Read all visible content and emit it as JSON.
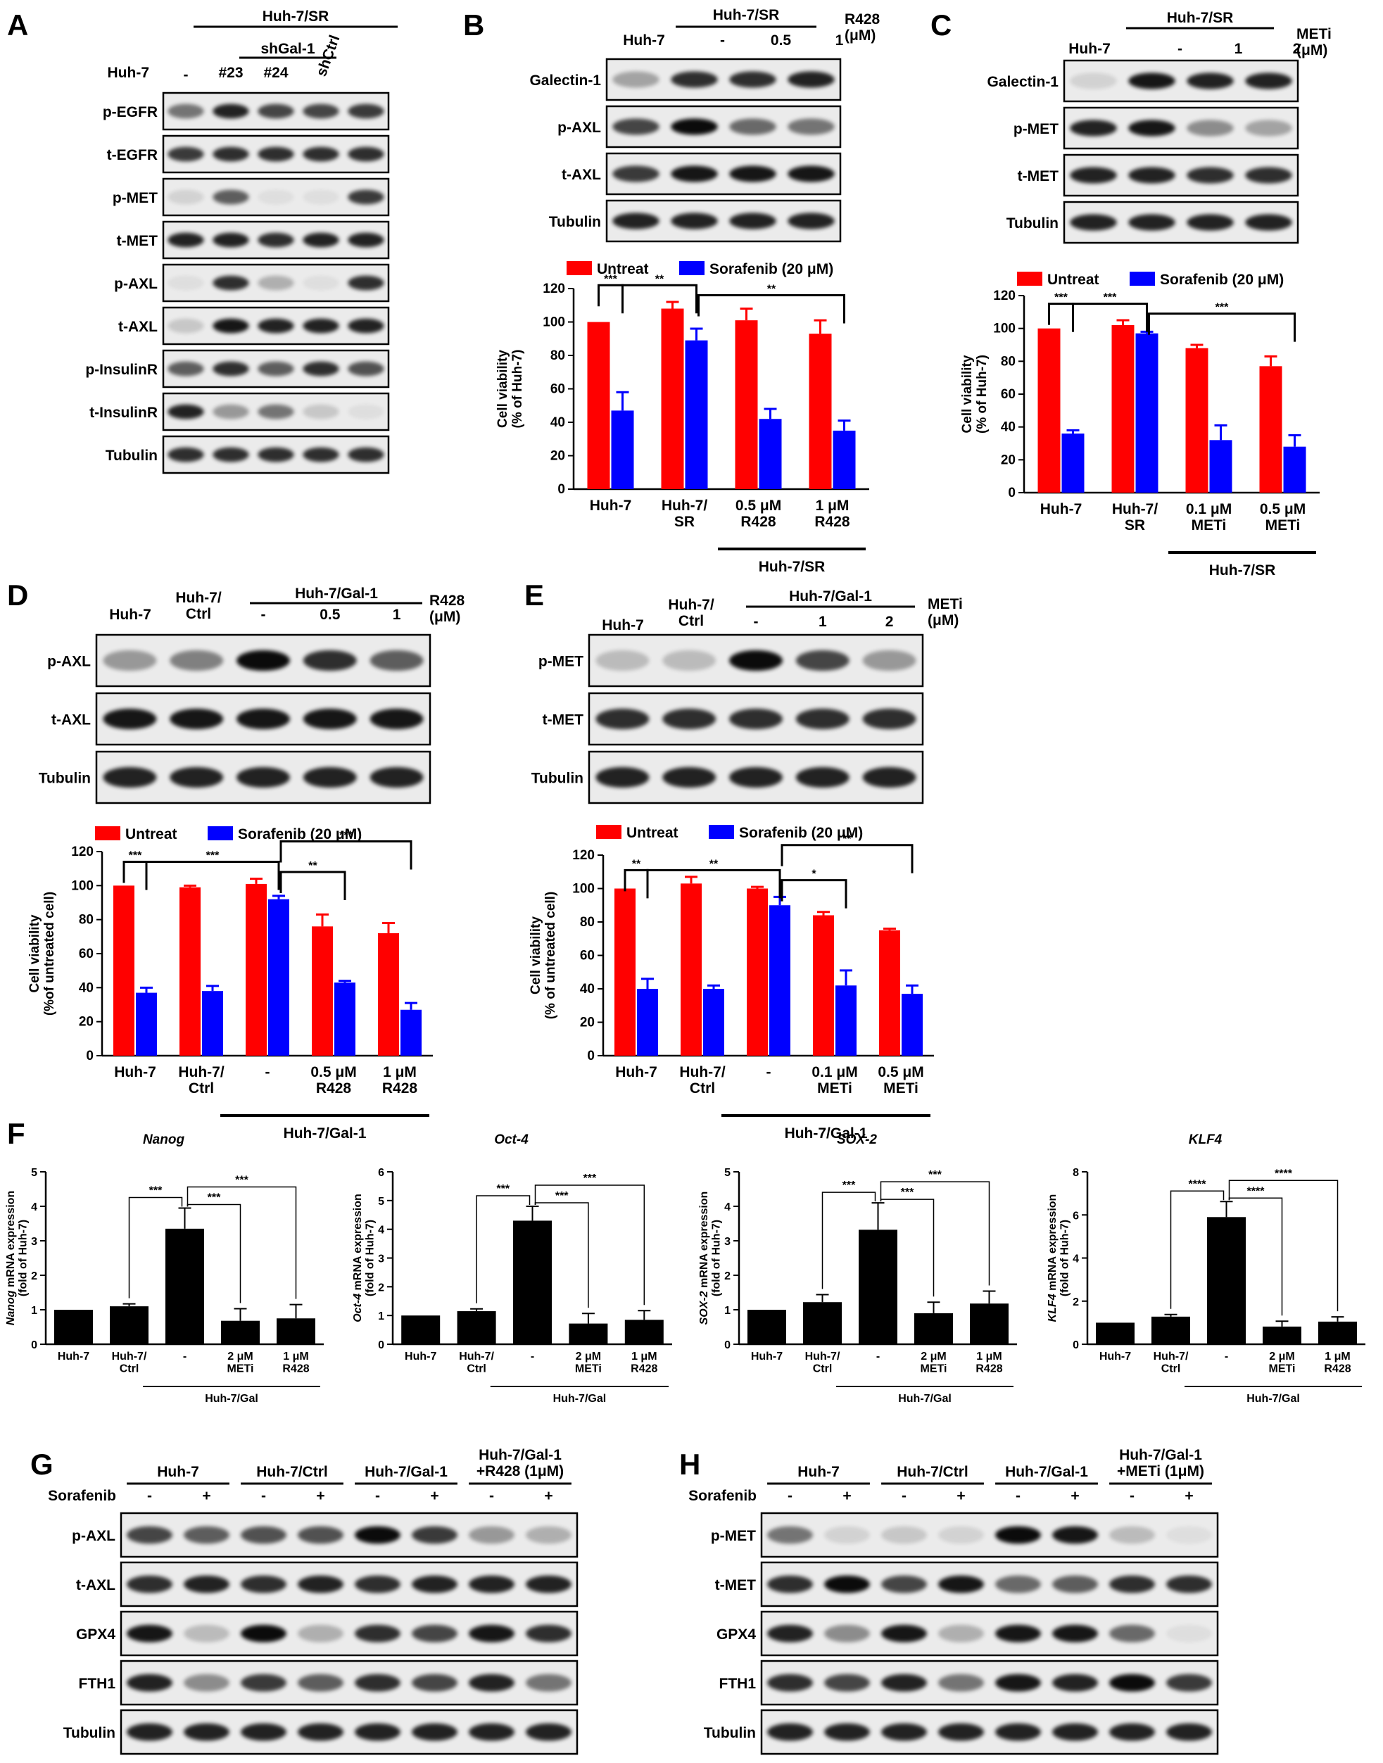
{
  "figure": {
    "panel_letters": [
      "A",
      "B",
      "C",
      "D",
      "E",
      "F",
      "G",
      "H"
    ],
    "units": {
      "r428": "R428\n(μM)",
      "meti": "METi\n(μM)"
    },
    "sig": {
      "s1": "*",
      "s2": "**",
      "s3": "***",
      "s4": "****"
    }
  },
  "blots": {
    "A": {
      "group_label": "Huh-7/SR",
      "sub_group_label": "shGal-1",
      "columns": [
        "Huh-7",
        "-",
        "#23",
        "#24",
        "shCtrl"
      ],
      "rows": [
        "p-EGFR",
        "t-EGFR",
        "p-MET",
        "t-MET",
        "p-AXL",
        "t-AXL",
        "p-InsulinR",
        "t-InsulinR",
        "Tubulin"
      ],
      "intensity": [
        [
          0.5,
          0.85,
          0.7,
          0.7,
          0.75
        ],
        [
          0.75,
          0.8,
          0.8,
          0.8,
          0.8
        ],
        [
          0.1,
          0.6,
          0.05,
          0.05,
          0.75
        ],
        [
          0.85,
          0.85,
          0.8,
          0.85,
          0.85
        ],
        [
          0.05,
          0.8,
          0.25,
          0.05,
          0.8
        ],
        [
          0.15,
          0.9,
          0.85,
          0.85,
          0.85
        ],
        [
          0.6,
          0.8,
          0.6,
          0.8,
          0.65
        ],
        [
          0.85,
          0.35,
          0.5,
          0.15,
          0.05
        ],
        [
          0.8,
          0.8,
          0.8,
          0.8,
          0.8
        ]
      ]
    },
    "B": {
      "group_label": "Huh-7/SR",
      "columns": [
        "Huh-7",
        "-",
        "0.5",
        "1"
      ],
      "rows": [
        "Galectin-1",
        "p-AXL",
        "t-AXL",
        "Tubulin"
      ],
      "intensity": [
        [
          0.3,
          0.8,
          0.8,
          0.85
        ],
        [
          0.7,
          0.95,
          0.55,
          0.5
        ],
        [
          0.75,
          0.9,
          0.9,
          0.9
        ],
        [
          0.85,
          0.85,
          0.85,
          0.85
        ]
      ]
    },
    "C": {
      "group_label": "Huh-7/SR",
      "columns": [
        "Huh-7",
        "-",
        "1",
        "2"
      ],
      "rows": [
        "Galectin-1",
        "p-MET",
        "t-MET",
        "Tubulin"
      ],
      "intensity": [
        [
          0.1,
          0.9,
          0.85,
          0.85
        ],
        [
          0.85,
          0.9,
          0.4,
          0.3
        ],
        [
          0.85,
          0.85,
          0.8,
          0.8
        ],
        [
          0.85,
          0.85,
          0.85,
          0.85
        ]
      ]
    },
    "D": {
      "group_label": "Huh-7/Gal-1",
      "columns": [
        "Huh-7",
        "Huh-7/\nCtrl",
        "-",
        "0.5",
        "1"
      ],
      "rows": [
        "p-AXL",
        "t-AXL",
        "Tubulin"
      ],
      "intensity": [
        [
          0.35,
          0.45,
          0.95,
          0.8,
          0.6
        ],
        [
          0.9,
          0.9,
          0.9,
          0.9,
          0.9
        ],
        [
          0.85,
          0.85,
          0.85,
          0.85,
          0.85
        ]
      ]
    },
    "E": {
      "group_label": "Huh-7/Gal-1",
      "columns": [
        "Huh-7",
        "Huh-7/\nCtrl",
        "-",
        "1",
        "2"
      ],
      "rows": [
        "p-MET",
        "t-MET",
        "Tubulin"
      ],
      "intensity": [
        [
          0.2,
          0.2,
          0.95,
          0.7,
          0.35
        ],
        [
          0.8,
          0.8,
          0.8,
          0.8,
          0.8
        ],
        [
          0.85,
          0.85,
          0.85,
          0.85,
          0.85
        ]
      ]
    },
    "G": {
      "groups": [
        "Huh-7",
        "Huh-7/Ctrl",
        "Huh-7/Gal-1",
        "Huh-7/Gal-1\n+R428 (1μM)"
      ],
      "treatment_label": "Sorafenib",
      "signs": [
        "-",
        "+",
        "-",
        "+",
        "-",
        "+",
        "-",
        "+"
      ],
      "rows": [
        "p-AXL",
        "t-AXL",
        "GPX4",
        "FTH1",
        "Tubulin"
      ],
      "intensity": [
        [
          0.7,
          0.6,
          0.65,
          0.65,
          0.95,
          0.75,
          0.35,
          0.25
        ],
        [
          0.8,
          0.85,
          0.8,
          0.85,
          0.8,
          0.85,
          0.85,
          0.85
        ],
        [
          0.9,
          0.2,
          0.95,
          0.25,
          0.8,
          0.7,
          0.9,
          0.8
        ],
        [
          0.85,
          0.4,
          0.75,
          0.6,
          0.8,
          0.7,
          0.85,
          0.5
        ],
        [
          0.85,
          0.85,
          0.85,
          0.85,
          0.85,
          0.85,
          0.85,
          0.85
        ]
      ]
    },
    "H": {
      "groups": [
        "Huh-7",
        "Huh-7/Ctrl",
        "Huh-7/Gal-1",
        "Huh-7/Gal-1\n+METi (1μM)"
      ],
      "treatment_label": "Sorafenib",
      "signs": [
        "-",
        "+",
        "-",
        "+",
        "-",
        "+",
        "-",
        "+"
      ],
      "rows": [
        "p-MET",
        "t-MET",
        "GPX4",
        "FTH1",
        "Tubulin"
      ],
      "intensity": [
        [
          0.5,
          0.1,
          0.15,
          0.1,
          0.95,
          0.9,
          0.2,
          0.05
        ],
        [
          0.8,
          0.95,
          0.7,
          0.9,
          0.55,
          0.6,
          0.8,
          0.8
        ],
        [
          0.85,
          0.4,
          0.9,
          0.25,
          0.9,
          0.9,
          0.55,
          0.05
        ],
        [
          0.8,
          0.7,
          0.85,
          0.5,
          0.9,
          0.85,
          0.95,
          0.75
        ],
        [
          0.85,
          0.85,
          0.85,
          0.85,
          0.85,
          0.85,
          0.85,
          0.85
        ]
      ]
    }
  },
  "chart_data": [
    {
      "panel": "B",
      "type": "bar",
      "legend": [
        "Untreat",
        "Sorafenib (20 μM)"
      ],
      "colors": [
        "#ff0000",
        "#0000ff"
      ],
      "ylabel": "Cell viability\n(% of Huh-7)",
      "ylim": [
        0,
        120
      ],
      "yticks": [
        0,
        20,
        40,
        60,
        80,
        100,
        120
      ],
      "categories": [
        "Huh-7",
        "Huh-7/\nSR",
        "0.5 μM\nR428",
        "1 μM\nR428"
      ],
      "group_label": "Huh-7/SR",
      "series": [
        {
          "name": "Untreat",
          "values": [
            100,
            108,
            101,
            93
          ],
          "errors": [
            0,
            4,
            7,
            8
          ]
        },
        {
          "name": "Sorafenib (20 μM)",
          "values": [
            47,
            89,
            42,
            35
          ],
          "errors": [
            11,
            7,
            6,
            6
          ]
        }
      ],
      "annotations": [
        "***",
        "**",
        "**",
        "***"
      ]
    },
    {
      "panel": "C",
      "type": "bar",
      "legend": [
        "Untreat",
        "Sorafenib (20 μM)"
      ],
      "colors": [
        "#ff0000",
        "#0000ff"
      ],
      "ylabel": "Cell viability\n(% of Huh-7)",
      "ylim": [
        0,
        120
      ],
      "yticks": [
        0,
        20,
        40,
        60,
        80,
        100,
        120
      ],
      "categories": [
        "Huh-7",
        "Huh-7/\nSR",
        "0.1 μM\nMETi",
        "0.5 μM\nMETi"
      ],
      "group_label": "Huh-7/SR",
      "series": [
        {
          "name": "Untreat",
          "values": [
            100,
            102,
            88,
            77
          ],
          "errors": [
            0,
            3,
            2,
            6
          ]
        },
        {
          "name": "Sorafenib (20 μM)",
          "values": [
            36,
            97,
            32,
            28
          ],
          "errors": [
            2,
            1,
            9,
            7
          ]
        }
      ],
      "annotations": [
        "***",
        "***",
        "***",
        "***"
      ]
    },
    {
      "panel": "D",
      "type": "bar",
      "legend": [
        "Untreat",
        "Sorafenib (20 μM)"
      ],
      "colors": [
        "#ff0000",
        "#0000ff"
      ],
      "ylabel": "Cell viability\n(%of untreated cell)",
      "ylim": [
        0,
        120
      ],
      "yticks": [
        0,
        20,
        40,
        60,
        80,
        100,
        120
      ],
      "categories": [
        "Huh-7",
        "Huh-7/\nCtrl",
        "-",
        "0.5 μM\nR428",
        "1 μM\nR428"
      ],
      "group_label": "Huh-7/Gal-1",
      "series": [
        {
          "name": "Untreat",
          "values": [
            100,
            99,
            101,
            76,
            72
          ],
          "errors": [
            0,
            1,
            3,
            7,
            6
          ]
        },
        {
          "name": "Sorafenib (20 μM)",
          "values": [
            37,
            38,
            92,
            43,
            27
          ],
          "errors": [
            3,
            3,
            2,
            1,
            4
          ]
        }
      ],
      "annotations": [
        "***",
        "***",
        "**",
        "***"
      ]
    },
    {
      "panel": "E",
      "type": "bar",
      "legend": [
        "Untreat",
        "Sorafenib (20 μM)"
      ],
      "colors": [
        "#ff0000",
        "#0000ff"
      ],
      "ylabel": "Cell viability\n(% of untreated cell)",
      "ylim": [
        0,
        120
      ],
      "yticks": [
        0,
        20,
        40,
        60,
        80,
        100,
        120
      ],
      "categories": [
        "Huh-7",
        "Huh-7/\nCtrl",
        "-",
        "0.1 μM\nMETi",
        "0.5 μM\nMETi"
      ],
      "group_label": "Huh-7/Gal-1",
      "series": [
        {
          "name": "Untreat",
          "values": [
            100,
            103,
            100,
            84,
            75
          ],
          "errors": [
            0,
            4,
            1,
            2,
            1
          ]
        },
        {
          "name": "Sorafenib (20 μM)",
          "values": [
            40,
            40,
            90,
            42,
            37
          ],
          "errors": [
            6,
            2,
            5,
            9,
            5
          ]
        }
      ],
      "annotations": [
        "**",
        "**",
        "*",
        "**"
      ]
    },
    {
      "panel": "F",
      "type": "bar",
      "title": "Nanog",
      "ylabel": "Nanog mRNA expression\n(fold of Huh-7)",
      "ylim": [
        0,
        5
      ],
      "yticks": [
        0,
        1,
        2,
        3,
        4,
        5
      ],
      "categories": [
        "Huh-7",
        "Huh-7/\nCtrl",
        "-",
        "2 μM\nMETi",
        "1 μM\nR428"
      ],
      "group_label": "Huh-7/Gal",
      "values": [
        1.0,
        1.1,
        3.35,
        0.68,
        0.75
      ],
      "errors": [
        0,
        0.07,
        0.6,
        0.35,
        0.4
      ],
      "annotations": [
        "***",
        "***",
        "***"
      ]
    },
    {
      "panel": "F",
      "type": "bar",
      "title": "Oct-4",
      "ylabel": "Oct-4 mRNA expression\n(fold of Huh-7)",
      "ylim": [
        0,
        6
      ],
      "yticks": [
        0,
        1,
        2,
        3,
        4,
        5,
        6
      ],
      "categories": [
        "Huh-7",
        "Huh-7/\nCtrl",
        "-",
        "2 μM\nMETi",
        "1 μM\nR428"
      ],
      "group_label": "Huh-7/Gal",
      "values": [
        1.0,
        1.15,
        4.3,
        0.72,
        0.85
      ],
      "errors": [
        0,
        0.08,
        0.5,
        0.35,
        0.32
      ],
      "annotations": [
        "***",
        "***",
        "***"
      ]
    },
    {
      "panel": "F",
      "type": "bar",
      "title": "SOX-2",
      "ylabel": "SOX-2 mRNA expression\n(fold of Huh-7)",
      "ylim": [
        0,
        5
      ],
      "yticks": [
        0,
        1,
        2,
        3,
        4,
        5
      ],
      "categories": [
        "Huh-7",
        "Huh-7/\nCtrl",
        "-",
        "2 μM\nMETi",
        "1 μM\nR428"
      ],
      "group_label": "Huh-7/Gal",
      "values": [
        1.0,
        1.22,
        3.32,
        0.9,
        1.18
      ],
      "errors": [
        0,
        0.22,
        0.78,
        0.32,
        0.36
      ],
      "annotations": [
        "***",
        "***",
        "***"
      ]
    },
    {
      "panel": "F",
      "type": "bar",
      "title": "KLF4",
      "ylabel": "KLF4 mRNA expression\n(fold of Huh-7)",
      "ylim": [
        0,
        8
      ],
      "yticks": [
        0,
        2,
        4,
        6,
        8
      ],
      "categories": [
        "Huh-7",
        "Huh-7/\nCtrl",
        "-",
        "2 μM\nMETi",
        "1 μM\nR428"
      ],
      "group_label": "Huh-7/Gal",
      "values": [
        1.0,
        1.28,
        5.9,
        0.82,
        1.05
      ],
      "errors": [
        0,
        0.1,
        0.72,
        0.25,
        0.22
      ],
      "annotations": [
        "****",
        "****",
        "****"
      ]
    }
  ]
}
